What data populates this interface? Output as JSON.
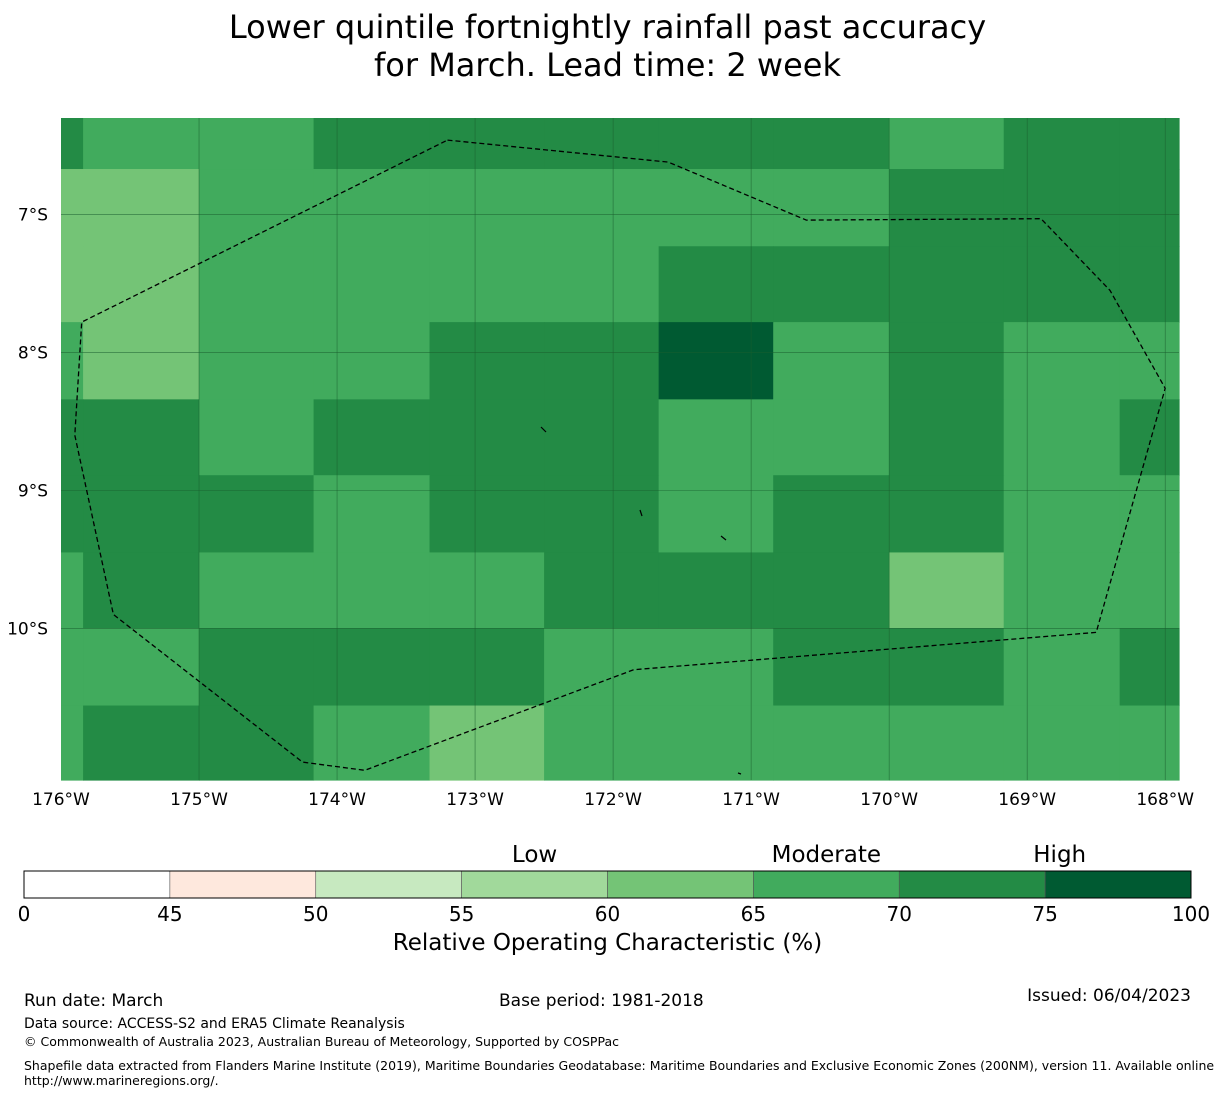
{
  "title": {
    "line1": "Lower quintile fortnightly rainfall past accuracy",
    "line2": "for March. Lead time: 2 week"
  },
  "map": {
    "lon_range": [
      -176.0,
      -167.9
    ],
    "lat_range": [
      -11.1,
      -6.3
    ],
    "x_ticks": [
      {
        "value": -176,
        "label": "176°W"
      },
      {
        "value": -175,
        "label": "175°W"
      },
      {
        "value": -174,
        "label": "174°W"
      },
      {
        "value": -173,
        "label": "173°W"
      },
      {
        "value": -172,
        "label": "172°W"
      },
      {
        "value": -171,
        "label": "171°W"
      },
      {
        "value": -170,
        "label": "170°W"
      },
      {
        "value": -169,
        "label": "169°W"
      },
      {
        "value": -168,
        "label": "168°W"
      }
    ],
    "y_ticks": [
      {
        "value": -7,
        "label": "7°S"
      },
      {
        "value": -8,
        "label": "8°S"
      },
      {
        "value": -9,
        "label": "9°S"
      },
      {
        "value": -10,
        "label": "10°S"
      }
    ],
    "grid_lon_edges": [
      -176.0,
      -175.84,
      -175.0,
      -174.17,
      -173.33,
      -172.5,
      -171.67,
      -170.84,
      -170.0,
      -169.17,
      -168.33,
      -167.9
    ],
    "grid_lat_edges": [
      -6.3,
      -6.67,
      -7.23,
      -7.78,
      -8.34,
      -8.89,
      -9.45,
      -10.0,
      -10.56,
      -11.1
    ],
    "roc_cells": [
      [
        72,
        67,
        67,
        72,
        72,
        72,
        72,
        72,
        67,
        72,
        72
      ],
      [
        62,
        62,
        67,
        67,
        67,
        67,
        67,
        67,
        72,
        72,
        72
      ],
      [
        62,
        62,
        67,
        67,
        67,
        67,
        72,
        72,
        72,
        72,
        72
      ],
      [
        67,
        62,
        67,
        67,
        72,
        72,
        77,
        67,
        72,
        67,
        67
      ],
      [
        72,
        72,
        67,
        72,
        72,
        72,
        67,
        67,
        72,
        67,
        72
      ],
      [
        72,
        72,
        72,
        67,
        72,
        72,
        67,
        72,
        72,
        67,
        67
      ],
      [
        67,
        72,
        67,
        67,
        67,
        72,
        72,
        72,
        62,
        67,
        67
      ],
      [
        67,
        67,
        72,
        72,
        72,
        67,
        67,
        72,
        72,
        67,
        72
      ],
      [
        67,
        72,
        72,
        67,
        62,
        67,
        67,
        67,
        67,
        67,
        67
      ]
    ],
    "eez_boundary": [
      [
        -173.2,
        -6.46
      ],
      [
        -171.6,
        -6.62
      ],
      [
        -170.6,
        -7.04
      ],
      [
        -168.9,
        -7.03
      ],
      [
        -168.4,
        -7.55
      ],
      [
        -168.0,
        -8.26
      ],
      [
        -168.5,
        -10.03
      ],
      [
        -171.85,
        -10.3
      ],
      [
        -173.8,
        -11.03
      ],
      [
        -174.25,
        -10.97
      ],
      [
        -175.62,
        -9.9
      ],
      [
        -175.9,
        -8.6
      ],
      [
        -175.85,
        -7.78
      ],
      [
        -173.2,
        -6.46
      ]
    ]
  },
  "colorbar": {
    "bounds": [
      0,
      45,
      50,
      55,
      60,
      65,
      70,
      75,
      100
    ],
    "colors": [
      "#ffffff",
      "#fee8dd",
      "#c7e9c0",
      "#a1d99b",
      "#74c476",
      "#41ab5d",
      "#238b45",
      "#005a32"
    ],
    "categories": [
      {
        "label": "Low",
        "at": 57.5
      },
      {
        "label": "Moderate",
        "at": 67.5
      },
      {
        "label": "High",
        "at": 77.5
      }
    ],
    "label": "Relative Operating Characteristic (%)"
  },
  "footer": {
    "run_date": "Run date: March",
    "base_period": "Base period: 1981-2018",
    "issued": "Issued: 06/04/2023",
    "data_source": "Data source: ACCESS-S2 and ERA5 Climate Reanalysis",
    "copyright": "© Commonwealth of Australia 2023, Australian Bureau of Meteorology, Supported by COSPPac",
    "shapefile_line1": "Shapefile data extracted from Flanders Marine Institute (2019), Maritime Boundaries Geodatabase: Maritime Boundaries and Exclusive Economic Zones (200NM), version 11. Available online at",
    "shapefile_line2": "http://www.marineregions.org/."
  }
}
